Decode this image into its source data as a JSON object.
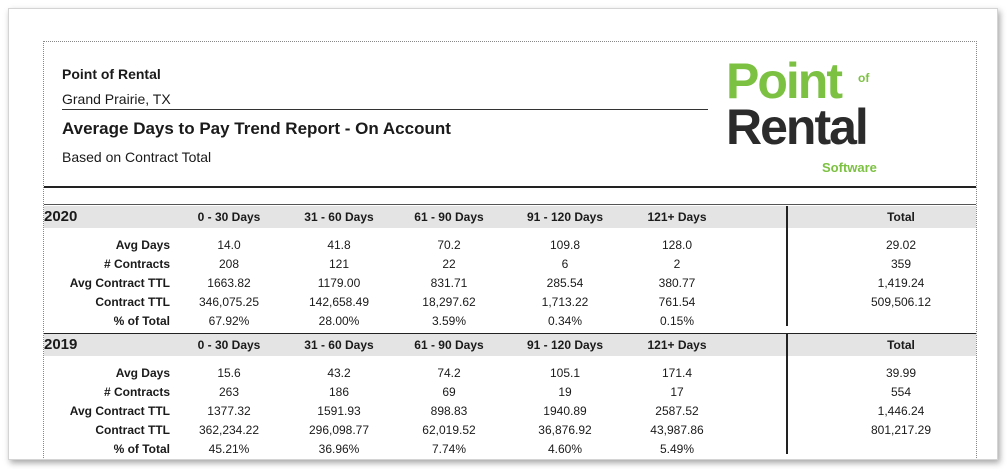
{
  "header": {
    "company": "Point of Rental",
    "city": "Grand Prairie, TX",
    "title": "Average Days to Pay Trend Report - On Account",
    "subtitle": "Based on Contract Total"
  },
  "logo": {
    "point": "Point",
    "of": "of",
    "rental": "Rental",
    "software": "Software",
    "colors": {
      "green": "#7cc142",
      "dark": "#2b2b2b"
    }
  },
  "columns": [
    "0 - 30 Days",
    "31 - 60 Days",
    "61 - 90 Days",
    "91 - 120 Days",
    "121+ Days"
  ],
  "total_label": "Total",
  "row_labels": [
    "Avg Days",
    "# Contracts",
    "Avg Contract TTL",
    "Contract TTL",
    "% of Total"
  ],
  "years": [
    {
      "year": "2020",
      "rows": [
        {
          "values": [
            "14.0",
            "41.8",
            "70.2",
            "109.8",
            "128.0"
          ],
          "total": "29.02"
        },
        {
          "values": [
            "208",
            "121",
            "22",
            "6",
            "2"
          ],
          "total": "359"
        },
        {
          "values": [
            "1663.82",
            "1179.00",
            "831.71",
            "285.54",
            "380.77"
          ],
          "total": "1,419.24"
        },
        {
          "values": [
            "346,075.25",
            "142,658.49",
            "18,297.62",
            "1,713.22",
            "761.54"
          ],
          "total": "509,506.12"
        },
        {
          "values": [
            "67.92%",
            "28.00%",
            "3.59%",
            "0.34%",
            "0.15%"
          ],
          "total": ""
        }
      ]
    },
    {
      "year": "2019",
      "rows": [
        {
          "values": [
            "15.6",
            "43.2",
            "74.2",
            "105.1",
            "171.4"
          ],
          "total": "39.99"
        },
        {
          "values": [
            "263",
            "186",
            "69",
            "19",
            "17"
          ],
          "total": "554"
        },
        {
          "values": [
            "1377.32",
            "1591.93",
            "898.83",
            "1940.89",
            "2587.52"
          ],
          "total": "1,446.24"
        },
        {
          "values": [
            "362,234.22",
            "296,098.77",
            "62,019.52",
            "36,876.92",
            "43,987.86"
          ],
          "total": "801,217.29"
        },
        {
          "values": [
            "45.21%",
            "36.96%",
            "7.74%",
            "4.60%",
            "5.49%"
          ],
          "total": ""
        }
      ]
    }
  ]
}
